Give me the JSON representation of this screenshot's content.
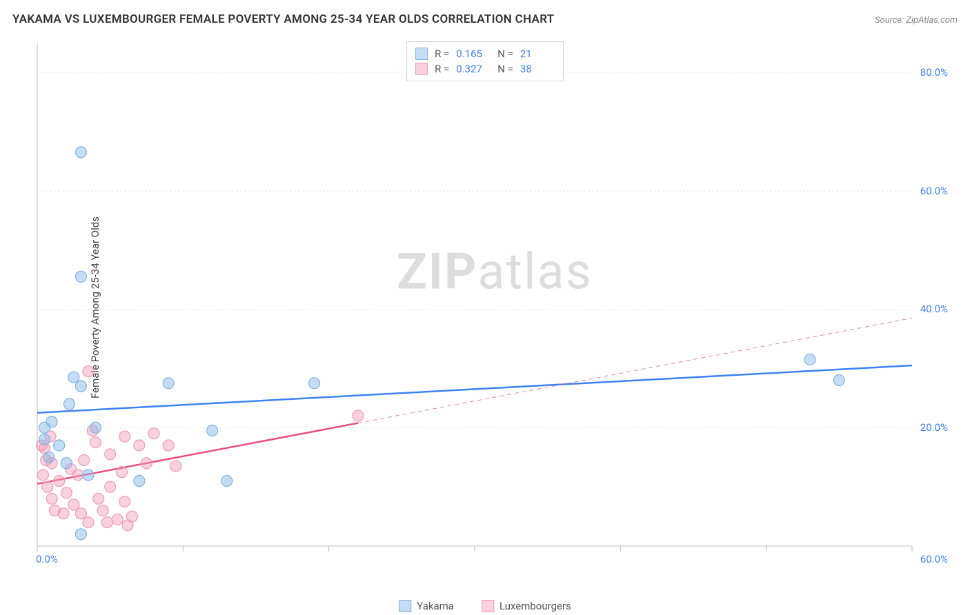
{
  "title": "YAKAMA VS LUXEMBOURGER FEMALE POVERTY AMONG 25-34 YEAR OLDS CORRELATION CHART",
  "source_label": "Source: ZipAtlas.com",
  "y_axis_label": "Female Poverty Among 25-34 Year Olds",
  "watermark": {
    "bold": "ZIP",
    "rest": "atlas"
  },
  "chart": {
    "type": "scatter-correlation",
    "background_color": "#ffffff",
    "grid_color": "#e5e5e5",
    "axis_color": "#bdbdbd",
    "tick_label_color": "#3b82f6",
    "x": {
      "min": 0,
      "max": 60,
      "origin_label": "0.0%",
      "max_label": "60.0%",
      "ticks": [
        0,
        10,
        20,
        30,
        40,
        50,
        60
      ]
    },
    "y": {
      "min": 0,
      "max": 85,
      "ticks": [
        20,
        40,
        60,
        80
      ],
      "tick_labels": [
        "20.0%",
        "40.0%",
        "60.0%",
        "80.0%"
      ]
    },
    "series": [
      {
        "name": "Yakama",
        "marker_color": "#7fb3e6",
        "marker_fill": "rgba(127,179,230,0.45)",
        "marker_radius": 8,
        "line_color": "#3b82f6",
        "line_width": 2.5,
        "r": 0.165,
        "n": 21,
        "trend_p1": {
          "x": 0,
          "y": 22.5
        },
        "trend_p2": {
          "x": 60,
          "y": 30.5
        },
        "points": [
          {
            "x": 3,
            "y": 66.5
          },
          {
            "x": 3,
            "y": 45.5
          },
          {
            "x": 3,
            "y": 27
          },
          {
            "x": 2.5,
            "y": 28.5
          },
          {
            "x": 1,
            "y": 21
          },
          {
            "x": 0.5,
            "y": 20
          },
          {
            "x": 0.5,
            "y": 18
          },
          {
            "x": 4,
            "y": 20
          },
          {
            "x": 3,
            "y": 2
          },
          {
            "x": 7,
            "y": 11
          },
          {
            "x": 9,
            "y": 27.5
          },
          {
            "x": 12,
            "y": 19.5
          },
          {
            "x": 13,
            "y": 11
          },
          {
            "x": 19,
            "y": 27.5
          },
          {
            "x": 53,
            "y": 31.5
          },
          {
            "x": 55,
            "y": 28
          },
          {
            "x": 2,
            "y": 14
          },
          {
            "x": 1.5,
            "y": 17
          },
          {
            "x": 0.8,
            "y": 15
          },
          {
            "x": 3.5,
            "y": 12
          },
          {
            "x": 2.2,
            "y": 24
          }
        ]
      },
      {
        "name": "Luxembourgers",
        "marker_color": "#f19bb4",
        "marker_fill": "rgba(241,155,180,0.45)",
        "marker_radius": 8,
        "line_color": "#e84d7a",
        "line_width": 2.5,
        "line_dash_after_x": 22,
        "r": 0.327,
        "n": 38,
        "trend_p1": {
          "x": 0,
          "y": 10.5
        },
        "trend_p2": {
          "x": 60,
          "y": 38.5
        },
        "points": [
          {
            "x": 3.5,
            "y": 29.5
          },
          {
            "x": 0.5,
            "y": 16.5
          },
          {
            "x": 1,
            "y": 14
          },
          {
            "x": 1.5,
            "y": 11
          },
          {
            "x": 2,
            "y": 9
          },
          {
            "x": 2.5,
            "y": 7
          },
          {
            "x": 3,
            "y": 5.5
          },
          {
            "x": 1,
            "y": 8
          },
          {
            "x": 0.7,
            "y": 10
          },
          {
            "x": 0.4,
            "y": 12
          },
          {
            "x": 0.3,
            "y": 17
          },
          {
            "x": 4,
            "y": 17.5
          },
          {
            "x": 5,
            "y": 15.5
          },
          {
            "x": 6,
            "y": 18.5
          },
          {
            "x": 7,
            "y": 17
          },
          {
            "x": 7.5,
            "y": 14
          },
          {
            "x": 8,
            "y": 19
          },
          {
            "x": 5,
            "y": 10
          },
          {
            "x": 4.5,
            "y": 6
          },
          {
            "x": 5.5,
            "y": 4.5
          },
          {
            "x": 3.5,
            "y": 4
          },
          {
            "x": 2.8,
            "y": 12
          },
          {
            "x": 3.2,
            "y": 14.5
          },
          {
            "x": 3.8,
            "y": 19.5
          },
          {
            "x": 4.2,
            "y": 8
          },
          {
            "x": 6.5,
            "y": 5
          },
          {
            "x": 6,
            "y": 7.5
          },
          {
            "x": 1.8,
            "y": 5.5
          },
          {
            "x": 2.3,
            "y": 13
          },
          {
            "x": 5.8,
            "y": 12.5
          },
          {
            "x": 6.2,
            "y": 3.5
          },
          {
            "x": 4.8,
            "y": 4
          },
          {
            "x": 9,
            "y": 17
          },
          {
            "x": 9.5,
            "y": 13.5
          },
          {
            "x": 22,
            "y": 22
          },
          {
            "x": 0.6,
            "y": 14.5
          },
          {
            "x": 1.2,
            "y": 6
          },
          {
            "x": 0.9,
            "y": 18.5
          }
        ]
      }
    ]
  },
  "stats_box": {
    "r_label": "R =",
    "n_label": "N ="
  },
  "legend": {
    "items": [
      "Yakama",
      "Luxembourgers"
    ]
  }
}
